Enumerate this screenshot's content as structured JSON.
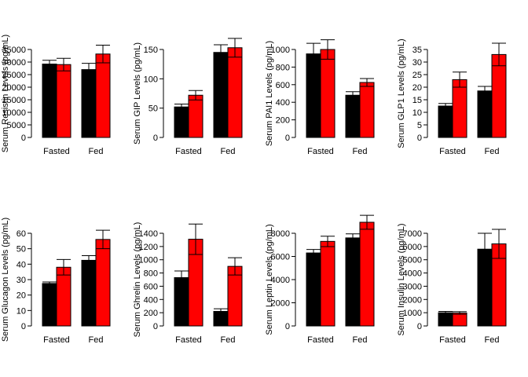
{
  "colors": {
    "black_bar": "#000000",
    "red_bar": "#ff0000",
    "axis": "#000000",
    "background": "#ffffff"
  },
  "chart_data": [
    {
      "type": "bar",
      "categories": [
        "Fasted",
        "Fed"
      ],
      "ylabel": "Serum Resistin Levels (pg/mL)",
      "ylim": [
        0,
        35000
      ],
      "yticks": [
        0,
        5000,
        10000,
        15000,
        20000,
        25000,
        30000,
        35000
      ],
      "ytick_labels": [
        "0",
        "5000",
        "10000",
        "15000",
        "20000",
        "25000",
        "30000",
        "35000"
      ],
      "series": [
        {
          "color": "#000000",
          "values": [
            29200,
            27000
          ],
          "errors": [
            1500,
            2500
          ]
        },
        {
          "color": "#ff0000",
          "values": [
            29000,
            33200
          ],
          "errors": [
            2500,
            3500
          ]
        }
      ]
    },
    {
      "type": "bar",
      "categories": [
        "Fasted",
        "Fed"
      ],
      "ylabel": "Serum GIP Levels (pg/mL)",
      "ylim": [
        0,
        150
      ],
      "yticks": [
        0,
        50,
        100,
        150
      ],
      "ytick_labels": [
        "0",
        "50",
        "100",
        "150"
      ],
      "series": [
        {
          "color": "#000000",
          "values": [
            52,
            145
          ],
          "errors": [
            5,
            13
          ]
        },
        {
          "color": "#ff0000",
          "values": [
            72,
            153
          ],
          "errors": [
            8,
            16
          ]
        }
      ]
    },
    {
      "type": "bar",
      "categories": [
        "Fasted",
        "Fed"
      ],
      "ylabel": "Serum PAI1 Levels (pg/mL)",
      "ylim": [
        0,
        1000
      ],
      "yticks": [
        0,
        200,
        400,
        600,
        800,
        1000
      ],
      "ytick_labels": [
        "0",
        "200",
        "400",
        "600",
        "800",
        "1000"
      ],
      "series": [
        {
          "color": "#000000",
          "values": [
            950,
            480
          ],
          "errors": [
            120,
            40
          ]
        },
        {
          "color": "#ff0000",
          "values": [
            1000,
            625
          ],
          "errors": [
            110,
            45
          ]
        }
      ]
    },
    {
      "type": "bar",
      "categories": [
        "Fasted",
        "Fed"
      ],
      "ylabel": "Serum GLP1 Levels (pg/mL)",
      "ylim": [
        0,
        35
      ],
      "yticks": [
        0,
        5,
        10,
        15,
        20,
        25,
        30,
        35
      ],
      "ytick_labels": [
        "0",
        "5",
        "10",
        "15",
        "20",
        "25",
        "30",
        "35"
      ],
      "series": [
        {
          "color": "#000000",
          "values": [
            12.5,
            18.5
          ],
          "errors": [
            1,
            1.8
          ]
        },
        {
          "color": "#ff0000",
          "values": [
            23,
            33
          ],
          "errors": [
            3,
            4.5
          ]
        }
      ]
    },
    {
      "type": "bar",
      "categories": [
        "Fasted",
        "Fed"
      ],
      "ylabel": "Serum Glucagon Levels (pg/mL)",
      "ylim": [
        0,
        60
      ],
      "yticks": [
        0,
        10,
        20,
        30,
        40,
        50,
        60
      ],
      "ytick_labels": [
        "0",
        "10",
        "20",
        "30",
        "40",
        "50",
        "60"
      ],
      "series": [
        {
          "color": "#000000",
          "values": [
            27.5,
            42.5
          ],
          "errors": [
            1,
            3
          ]
        },
        {
          "color": "#ff0000",
          "values": [
            38,
            56
          ],
          "errors": [
            5,
            6
          ]
        }
      ]
    },
    {
      "type": "bar",
      "categories": [
        "Fasted",
        "Fed"
      ],
      "ylabel": "Serum Ghrelin Levels (pg/mL)",
      "ylim": [
        0,
        1400
      ],
      "yticks": [
        0,
        200,
        400,
        600,
        800,
        1000,
        1200,
        1400
      ],
      "ytick_labels": [
        "0",
        "200",
        "400",
        "600",
        "800",
        "1000",
        "1200",
        "1400"
      ],
      "series": [
        {
          "color": "#000000",
          "values": [
            730,
            220
          ],
          "errors": [
            100,
            40
          ]
        },
        {
          "color": "#ff0000",
          "values": [
            1310,
            900
          ],
          "errors": [
            230,
            130
          ]
        }
      ]
    },
    {
      "type": "bar",
      "categories": [
        "Fasted",
        "Fed"
      ],
      "ylabel": "Serum Leptin Levels (pg/mL)",
      "ylim": [
        0,
        8000
      ],
      "yticks": [
        0,
        2000,
        4000,
        6000,
        8000
      ],
      "ytick_labels": [
        "0",
        "2000",
        "4000",
        "6000",
        "8000"
      ],
      "series": [
        {
          "color": "#000000",
          "values": [
            6300,
            7600
          ],
          "errors": [
            300,
            350
          ]
        },
        {
          "color": "#ff0000",
          "values": [
            7300,
            8950
          ],
          "errors": [
            450,
            600
          ]
        }
      ]
    },
    {
      "type": "bar",
      "categories": [
        "Fasted",
        "Fed"
      ],
      "ylabel": "Serum Insulin Levels (pg/mL)",
      "ylim": [
        0,
        7000
      ],
      "yticks": [
        0,
        1000,
        2000,
        3000,
        4000,
        5000,
        6000,
        7000
      ],
      "ytick_labels": [
        "0",
        "1000",
        "2000",
        "3000",
        "4000",
        "5000",
        "6000",
        "7000"
      ],
      "series": [
        {
          "color": "#000000",
          "values": [
            1000,
            5800
          ],
          "errors": [
            100,
            1200
          ]
        },
        {
          "color": "#ff0000",
          "values": [
            980,
            6200
          ],
          "errors": [
            100,
            1100
          ]
        }
      ]
    }
  ]
}
